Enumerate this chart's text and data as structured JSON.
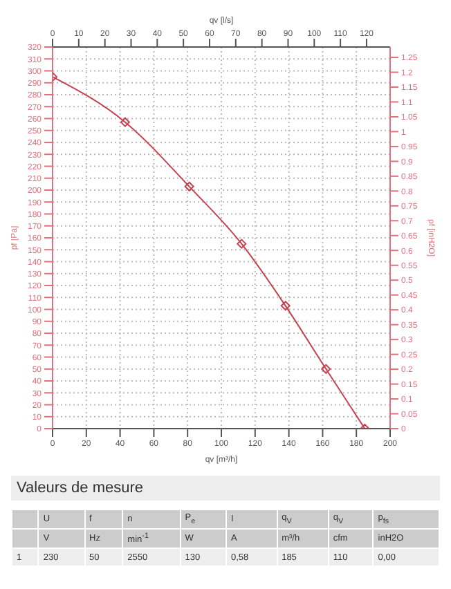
{
  "chart_data": {
    "type": "line",
    "xlabel": "qv [m³/h]",
    "ylabel": "pf [Pa]",
    "y2label": "pf [inH2O]",
    "x2label": "qv [l/s]",
    "x": [
      0,
      43,
      81,
      112,
      138,
      162,
      185
    ],
    "series": [
      {
        "color": "#c8404f",
        "values": [
          295,
          257,
          203,
          155,
          103,
          50,
          0
        ]
      }
    ],
    "xlim": [
      0,
      200
    ],
    "xticks": [
      0,
      20,
      40,
      60,
      80,
      100,
      120,
      140,
      160,
      180,
      200
    ],
    "x2lim": [
      0,
      129
    ],
    "x2ticks": [
      0,
      10,
      20,
      30,
      40,
      50,
      60,
      70,
      80,
      90,
      100,
      110,
      120
    ],
    "ylim": [
      0,
      320
    ],
    "yticks": [
      0,
      10,
      20,
      30,
      40,
      50,
      60,
      70,
      80,
      90,
      100,
      110,
      120,
      130,
      140,
      150,
      160,
      170,
      180,
      190,
      200,
      210,
      220,
      230,
      240,
      250,
      260,
      270,
      280,
      290,
      300,
      310,
      320
    ],
    "y2lim": [
      0,
      1.285
    ],
    "y2ticks": [
      0,
      0.05,
      0.1,
      0.15,
      0.2,
      0.25,
      0.3,
      0.35,
      0.4,
      0.45,
      0.5,
      0.55,
      0.6,
      0.65,
      0.7,
      0.75,
      0.8,
      0.85,
      0.9,
      0.95,
      1,
      1.05,
      1.1,
      1.15,
      1.2,
      1.25
    ],
    "grid": true,
    "marker": "diamond",
    "line_style": "solid",
    "legend": false,
    "annotations": [
      "Valeurs de mesure",
      "U",
      "f",
      "n",
      "P$_{e}$",
      "I",
      "q$_{V}$",
      "q$_{V}$",
      "p$_{fs}$",
      "V",
      "Hz",
      "min$^{-1}$",
      "W",
      "A",
      "m³/h",
      "cfm",
      "inH2O",
      "1",
      "230",
      "50",
      "2550",
      "130",
      "0,58",
      "185",
      "110",
      "0,00"
    ]
  }
}
